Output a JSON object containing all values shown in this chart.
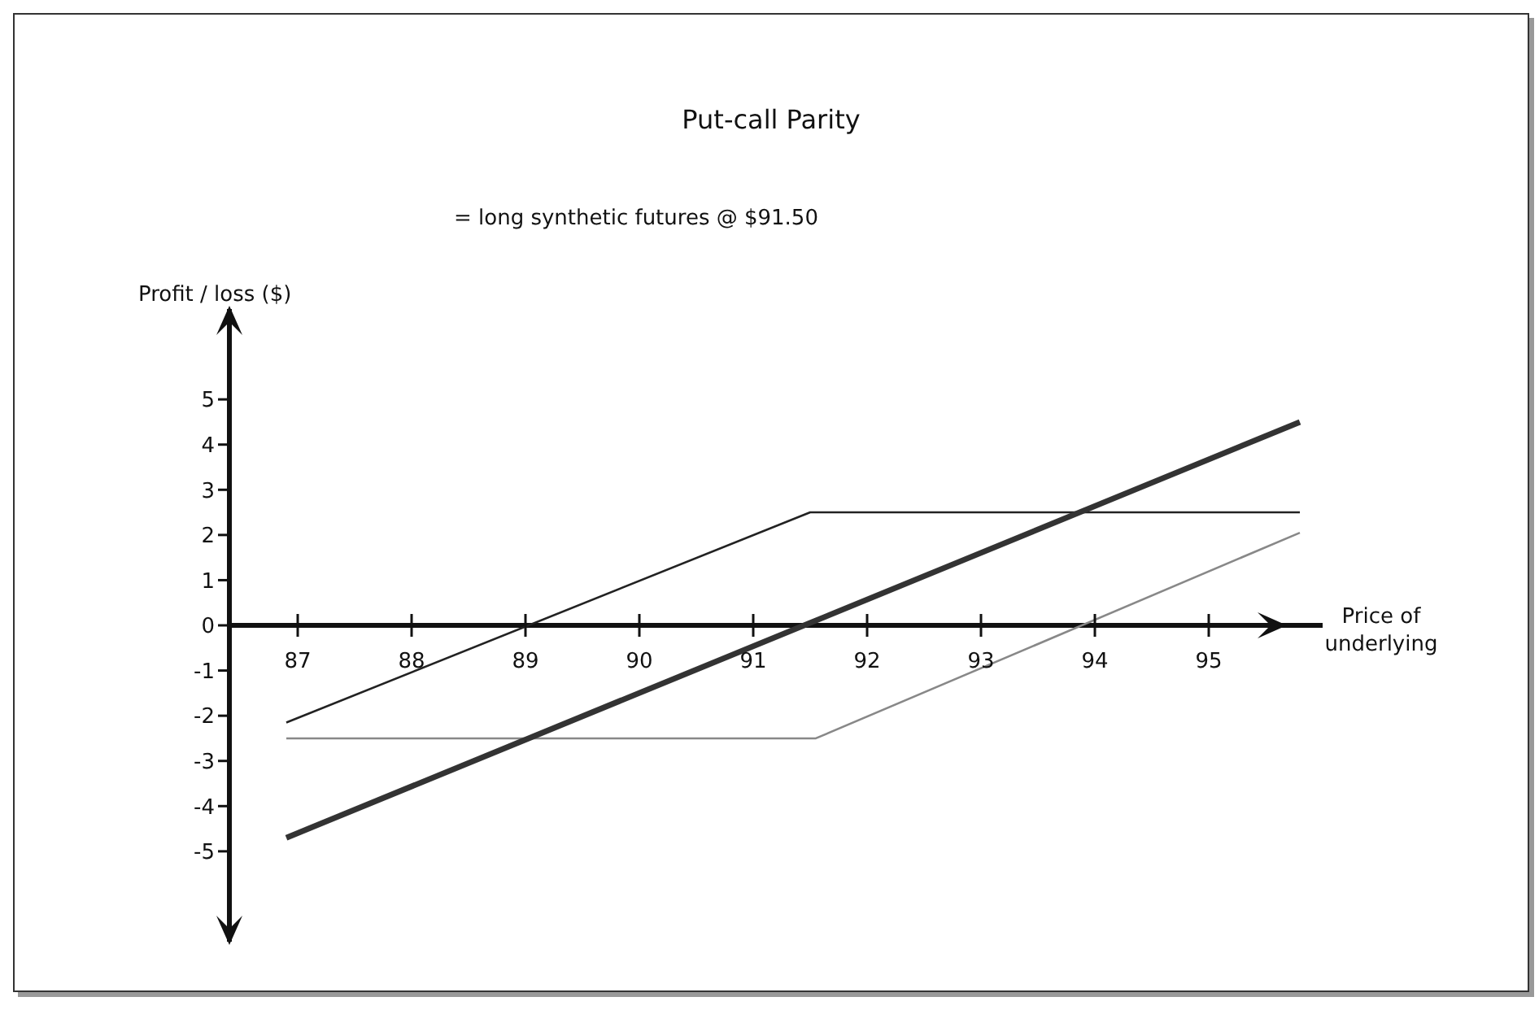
{
  "chart_data": {
    "type": "line",
    "title": "Put-call Parity",
    "subtitle": "= long synthetic futures @ $91.50",
    "xlabel": "Price of underlying",
    "ylabel": "Profit / loss ($)",
    "series": [
      {
        "color": "#222222",
        "x": [
          86.9,
          91.5,
          95.8
        ],
        "values": [
          -2.15,
          2.5,
          2.5
        ]
      },
      {
        "color": "#888888",
        "x": [
          86.9,
          91.55,
          95.8
        ],
        "values": [
          -2.5,
          -2.5,
          2.05
        ]
      },
      {
        "color": "#333333",
        "x": [
          86.9,
          95.8
        ],
        "values": [
          -4.7,
          4.5
        ]
      }
    ],
    "xlim": [
      86.4,
      96
    ],
    "xticks": [
      87,
      88,
      89,
      90,
      91,
      92,
      93,
      94,
      95
    ],
    "ylim": [
      -7,
      7
    ],
    "yticks": [
      -5,
      -4,
      -3,
      -2,
      -1,
      0,
      1,
      2,
      3,
      4,
      5
    ],
    "grid": false,
    "legend": false,
    "marker": "none",
    "line_style": "solid"
  }
}
